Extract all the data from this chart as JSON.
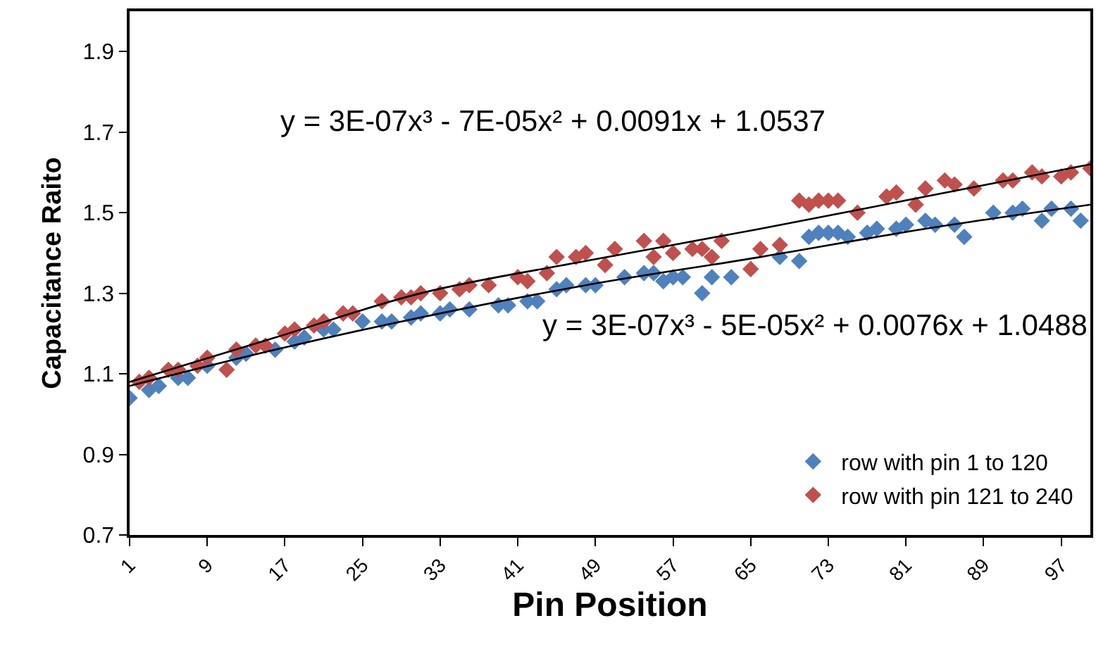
{
  "chart_data": {
    "type": "scatter",
    "xlabel": "Pin Position",
    "ylabel": "Capacitance Raito",
    "xlim": [
      1,
      100
    ],
    "xticks": [
      1,
      9,
      17,
      25,
      33,
      41,
      49,
      57,
      65,
      73,
      81,
      89,
      97
    ],
    "ylim": [
      0.7,
      2.0
    ],
    "yticks": [
      0.7,
      0.9,
      1.1,
      1.3,
      1.5,
      1.7,
      1.9
    ],
    "grid": false,
    "legend": "bottom right",
    "marker": "diamond",
    "annotations": [
      "y = 3E-07x³ - 7E-05x² + 0.0091x + 1.0537",
      "y = 3E-07x³ - 5E-05x² + 0.0076x + 1.0488"
    ],
    "series": [
      {
        "name": "row with pin 1 to 120",
        "color": "#4f81bd",
        "x": [
          1,
          3,
          4,
          6,
          7,
          9,
          12,
          13,
          16,
          18,
          19,
          21,
          22,
          25,
          27,
          28,
          30,
          31,
          33,
          34,
          36,
          39,
          40,
          42,
          43,
          45,
          46,
          48,
          49,
          52,
          54,
          55,
          56,
          57,
          58,
          60,
          61,
          63,
          68,
          70,
          71,
          72,
          73,
          74,
          75,
          77,
          78,
          80,
          81,
          83,
          84,
          86,
          87,
          90,
          92,
          93,
          95,
          96,
          98,
          99
        ],
        "values": [
          1.04,
          1.06,
          1.07,
          1.09,
          1.09,
          1.12,
          1.14,
          1.15,
          1.16,
          1.18,
          1.19,
          1.21,
          1.21,
          1.23,
          1.23,
          1.23,
          1.24,
          1.25,
          1.25,
          1.26,
          1.26,
          1.27,
          1.27,
          1.28,
          1.28,
          1.31,
          1.32,
          1.32,
          1.32,
          1.34,
          1.35,
          1.35,
          1.33,
          1.34,
          1.34,
          1.3,
          1.34,
          1.34,
          1.39,
          1.38,
          1.44,
          1.45,
          1.45,
          1.45,
          1.44,
          1.45,
          1.46,
          1.46,
          1.47,
          1.48,
          1.47,
          1.47,
          1.44,
          1.5,
          1.5,
          1.51,
          1.48,
          1.51,
          1.51,
          1.48
        ]
      },
      {
        "name": "row with pin 121 to 240",
        "color": "#c0504d",
        "x": [
          2,
          3,
          5,
          6,
          8,
          9,
          11,
          12,
          14,
          15,
          17,
          18,
          20,
          21,
          23,
          24,
          27,
          29,
          30,
          31,
          33,
          35,
          36,
          38,
          41,
          42,
          44,
          45,
          47,
          48,
          50,
          51,
          54,
          55,
          56,
          57,
          59,
          60,
          61,
          62,
          65,
          66,
          68,
          70,
          71,
          72,
          73,
          74,
          76,
          79,
          80,
          82,
          83,
          85,
          86,
          88,
          91,
          92,
          94,
          95,
          97,
          98,
          100
        ],
        "values": [
          1.08,
          1.09,
          1.11,
          1.11,
          1.12,
          1.14,
          1.11,
          1.16,
          1.17,
          1.17,
          1.2,
          1.21,
          1.22,
          1.23,
          1.25,
          1.25,
          1.28,
          1.29,
          1.29,
          1.3,
          1.3,
          1.31,
          1.32,
          1.32,
          1.34,
          1.33,
          1.35,
          1.39,
          1.39,
          1.4,
          1.37,
          1.41,
          1.43,
          1.39,
          1.43,
          1.4,
          1.41,
          1.41,
          1.39,
          1.43,
          1.36,
          1.41,
          1.42,
          1.53,
          1.52,
          1.53,
          1.53,
          1.53,
          1.5,
          1.54,
          1.55,
          1.52,
          1.56,
          1.58,
          1.57,
          1.56,
          1.58,
          1.58,
          1.6,
          1.59,
          1.59,
          1.6,
          1.61
        ]
      },
      {
        "type": "line",
        "marker": "none",
        "color": "#000000",
        "x": [
          1,
          16,
          31,
          48,
          66,
          83,
          100
        ],
        "values": [
          1.08,
          1.19,
          1.3,
          1.38,
          1.46,
          1.54,
          1.62
        ]
      },
      {
        "type": "line",
        "marker": "none",
        "color": "#000000",
        "x": [
          1,
          16,
          31,
          48,
          66,
          83,
          100
        ],
        "values": [
          1.07,
          1.16,
          1.24,
          1.32,
          1.39,
          1.46,
          1.52
        ]
      }
    ]
  }
}
